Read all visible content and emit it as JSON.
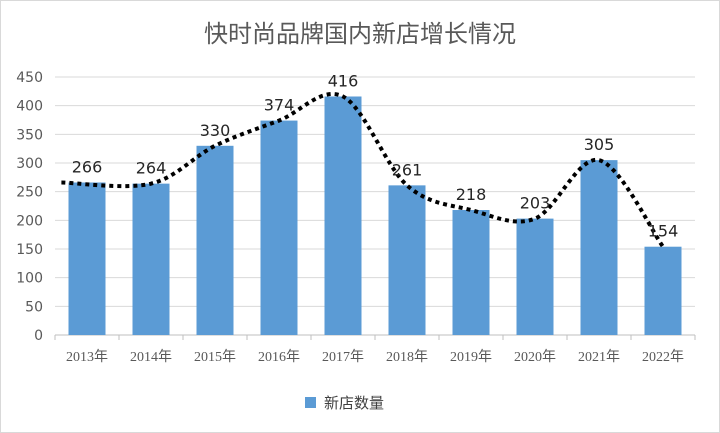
{
  "chart_data": {
    "type": "bar",
    "title": "快时尚品牌国内新店增长情况",
    "categories": [
      "2013年",
      "2014年",
      "2015年",
      "2016年",
      "2017年",
      "2018年",
      "2019年",
      "2020年",
      "2021年",
      "2022年"
    ],
    "series": [
      {
        "name": "新店数量",
        "values": [
          266,
          264,
          330,
          374,
          416,
          261,
          218,
          203,
          305,
          154
        ]
      }
    ],
    "ylim": [
      0,
      450
    ],
    "yticks": [
      0,
      50,
      100,
      150,
      200,
      250,
      300,
      350,
      400,
      450
    ],
    "grid": true,
    "legend": "bottom",
    "trendline": "dotted",
    "colors": {
      "bar": "#5b9bd5",
      "trend": "#000000",
      "grid": "#d9d9d9",
      "text": "#595959"
    }
  }
}
